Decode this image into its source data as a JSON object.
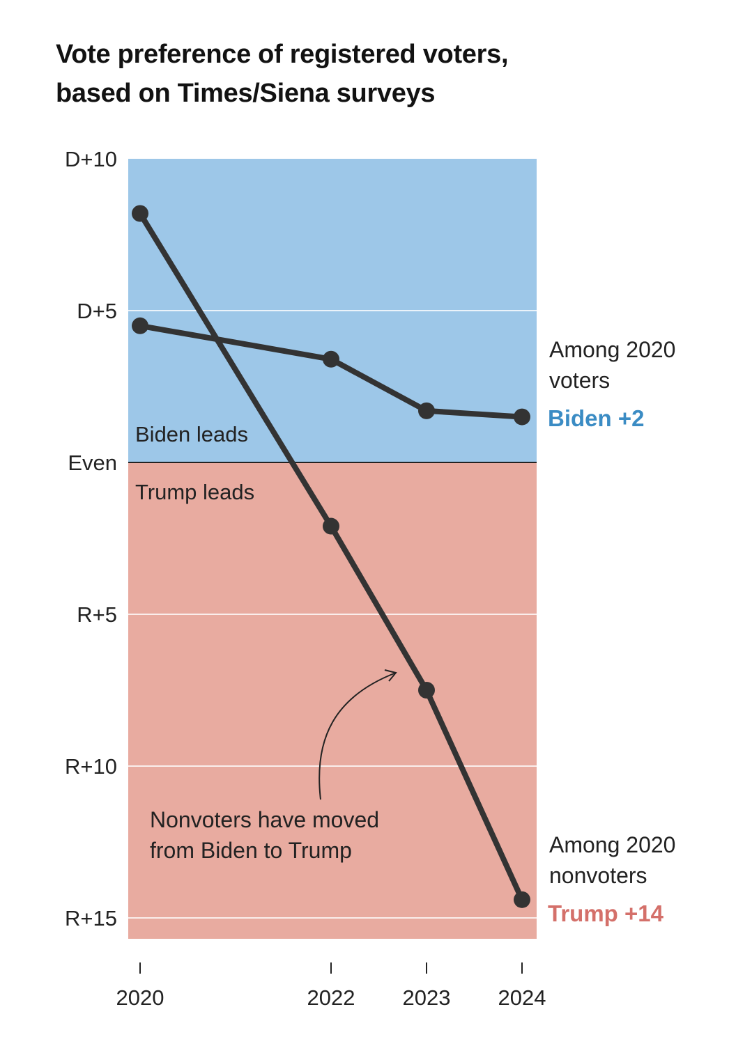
{
  "chart_data": {
    "type": "line",
    "title_lines": [
      "Vote preference of registered voters,",
      "based on Times/Siena surveys"
    ],
    "x": [
      2020,
      2022,
      2023,
      2024
    ],
    "x_tick_labels": [
      "2020",
      "2022",
      "2023",
      "2024"
    ],
    "ylim": [
      -15.7,
      10
    ],
    "y_unit_note": "positive = Democratic margin, negative = Republican margin",
    "y_ticks": [
      {
        "value": 10,
        "label": "D+10"
      },
      {
        "value": 5,
        "label": "D+5"
      },
      {
        "value": 0,
        "label": "Even"
      },
      {
        "value": -5,
        "label": "R+5"
      },
      {
        "value": -10,
        "label": "R+10"
      },
      {
        "value": -15,
        "label": "R+15"
      }
    ],
    "regions": [
      {
        "label": "Biden leads",
        "from": 0,
        "to": 10,
        "color": "#9dc7e8"
      },
      {
        "label": "Trump leads",
        "from": -15.7,
        "to": 0,
        "color": "#e8aba0"
      }
    ],
    "series": [
      {
        "name": "voters",
        "label_lines": [
          "Among 2020",
          "voters"
        ],
        "end_label": "Biden +2",
        "end_color": "#3b8cc4",
        "values": [
          4.5,
          3.4,
          1.7,
          1.5
        ]
      },
      {
        "name": "nonvoters",
        "label_lines": [
          "Among 2020",
          "nonvoters"
        ],
        "end_label": "Trump +14",
        "end_color": "#d4706a",
        "values": [
          8.2,
          -2.1,
          -7.5,
          -14.4
        ]
      }
    ],
    "annotation": {
      "lines": [
        "Nonvoters have moved",
        "from Biden to Trump"
      ]
    },
    "line_color": "#333333"
  }
}
